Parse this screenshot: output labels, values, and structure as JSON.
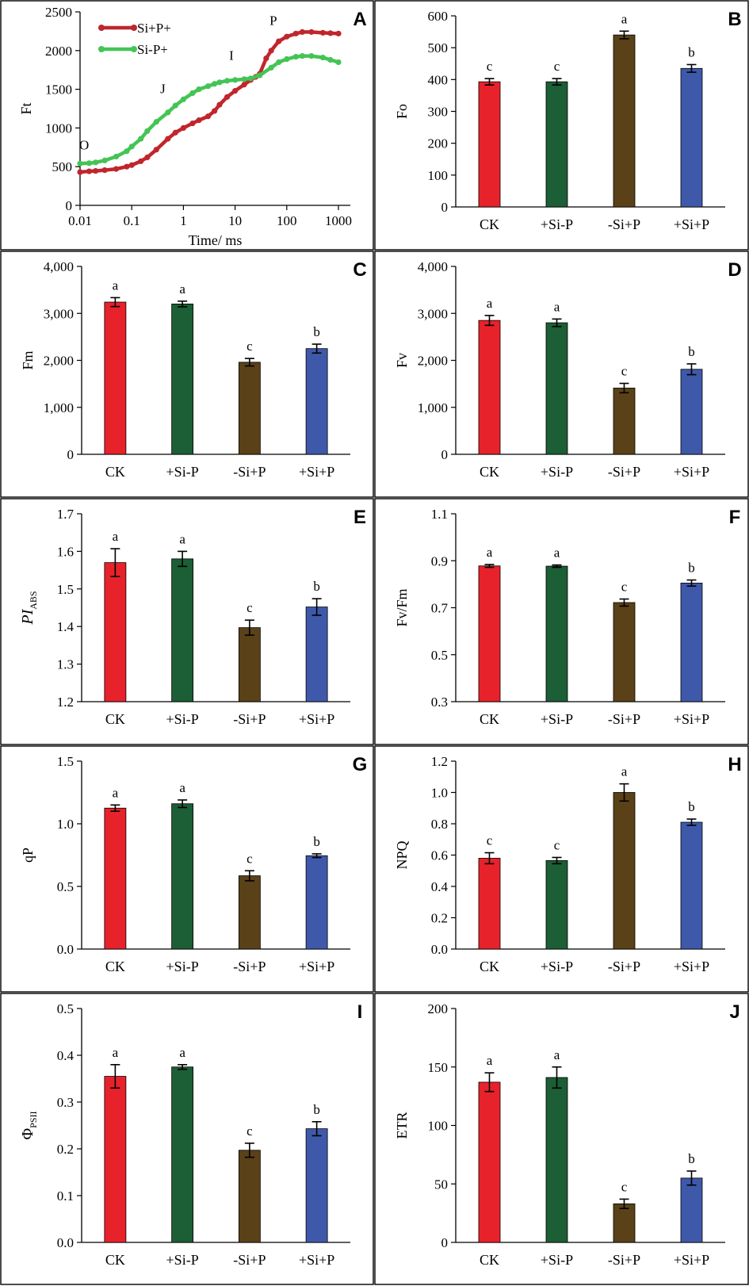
{
  "colors": {
    "red": "#E8222B",
    "green": "#1C5E35",
    "brown": "#5A4118",
    "blue": "#3F59AA",
    "curve_red": "#C0262C",
    "curve_green": "#44C455",
    "border": "#000000"
  },
  "chart_data": [
    {
      "id": "A",
      "letter": "A",
      "type": "line",
      "xscale": "log",
      "xlabel": "Time/ ms",
      "ylabel": "Ft",
      "xlim": [
        0.01,
        1000
      ],
      "ylim": [
        0,
        2500
      ],
      "xticks": [
        0.01,
        0.1,
        1,
        10,
        100,
        1000
      ],
      "xtick_labels": [
        "0.01",
        "0.1",
        "1",
        "10",
        "100",
        "1000"
      ],
      "yticks": [
        0,
        500,
        1000,
        1500,
        2000,
        2500
      ],
      "ytick_labels": [
        "0",
        "500",
        "1000",
        "1500",
        "2000",
        "2500"
      ],
      "legend": [
        "Si+P+",
        "Si-P+"
      ],
      "annotations": [
        {
          "text": "O",
          "x": 0.012,
          "y": 720
        },
        {
          "text": "J",
          "x": 0.4,
          "y": 1450
        },
        {
          "text": "I",
          "x": 8.5,
          "y": 1880
        },
        {
          "text": "P",
          "x": 55,
          "y": 2330
        }
      ],
      "series": [
        {
          "name": "Si+P+",
          "color_key": "curve_red",
          "x": [
            0.01,
            0.015,
            0.02,
            0.03,
            0.05,
            0.08,
            0.1,
            0.15,
            0.2,
            0.3,
            0.5,
            0.7,
            1,
            1.5,
            2,
            3,
            4,
            5,
            7,
            10,
            15,
            20,
            25,
            30,
            40,
            50,
            70,
            100,
            150,
            200,
            300,
            500,
            700,
            1000
          ],
          "y": [
            430,
            440,
            445,
            455,
            470,
            500,
            520,
            570,
            620,
            720,
            860,
            940,
            1000,
            1060,
            1100,
            1150,
            1220,
            1300,
            1400,
            1480,
            1560,
            1620,
            1660,
            1700,
            1900,
            2000,
            2120,
            2180,
            2220,
            2240,
            2240,
            2230,
            2225,
            2220
          ]
        },
        {
          "name": "Si-P+",
          "color_key": "curve_green",
          "x": [
            0.01,
            0.015,
            0.02,
            0.03,
            0.05,
            0.08,
            0.1,
            0.15,
            0.2,
            0.3,
            0.5,
            0.7,
            1,
            1.5,
            2,
            3,
            4,
            5,
            7,
            10,
            15,
            20,
            30,
            50,
            70,
            100,
            150,
            200,
            300,
            500,
            700,
            1000
          ],
          "y": [
            540,
            545,
            555,
            580,
            630,
            700,
            760,
            860,
            960,
            1080,
            1200,
            1290,
            1370,
            1450,
            1500,
            1540,
            1570,
            1590,
            1610,
            1620,
            1630,
            1640,
            1680,
            1780,
            1850,
            1890,
            1920,
            1930,
            1930,
            1910,
            1880,
            1850
          ]
        }
      ]
    },
    {
      "id": "B",
      "letter": "B",
      "type": "bar",
      "ylabel": "Fo",
      "categories": [
        "CK",
        "+Si-P",
        "-Si+P",
        "+Si+P"
      ],
      "values": [
        393,
        393,
        540,
        435
      ],
      "errors": [
        10,
        10,
        12,
        12
      ],
      "letters": [
        "c",
        "c",
        "a",
        "b"
      ],
      "ylim": [
        0,
        600
      ],
      "yticks": [
        0,
        100,
        200,
        300,
        400,
        500,
        600
      ],
      "ytick_labels": [
        "0",
        "100",
        "200",
        "300",
        "400",
        "500",
        "600"
      ]
    },
    {
      "id": "C",
      "letter": "C",
      "type": "bar",
      "ylabel": "Fm",
      "categories": [
        "CK",
        "+Si-P",
        "-Si+P",
        "+Si+P"
      ],
      "values": [
        3240,
        3200,
        1960,
        2250
      ],
      "errors": [
        95,
        60,
        80,
        95
      ],
      "letters": [
        "a",
        "a",
        "c",
        "b"
      ],
      "ylim": [
        0,
        4000
      ],
      "yticks": [
        0,
        1000,
        2000,
        3000,
        4000
      ],
      "ytick_labels": [
        "0",
        "1,000",
        "2,000",
        "3,000",
        "4,000"
      ]
    },
    {
      "id": "D",
      "letter": "D",
      "type": "bar",
      "ylabel": "Fv",
      "categories": [
        "CK",
        "+Si-P",
        "-Si+P",
        "+Si+P"
      ],
      "values": [
        2850,
        2800,
        1410,
        1810
      ],
      "errors": [
        105,
        80,
        100,
        115
      ],
      "letters": [
        "a",
        "a",
        "c",
        "b"
      ],
      "ylim": [
        0,
        4000
      ],
      "yticks": [
        0,
        1000,
        2000,
        3000,
        4000
      ],
      "ytick_labels": [
        "0",
        "1,000",
        "2,000",
        "3,000",
        "4,000"
      ]
    },
    {
      "id": "E",
      "letter": "E",
      "type": "bar",
      "ylabel": "PI",
      "ylabel_sub": "ABS",
      "ylabel_italic": true,
      "categories": [
        "CK",
        "+Si-P",
        "-Si+P",
        "+Si+P"
      ],
      "values": [
        1.57,
        1.58,
        1.397,
        1.452
      ],
      "errors": [
        0.037,
        0.02,
        0.02,
        0.022
      ],
      "letters": [
        "a",
        "a",
        "c",
        "b"
      ],
      "ylim": [
        1.2,
        1.7
      ],
      "yticks": [
        1.2,
        1.3,
        1.4,
        1.5,
        1.6,
        1.7
      ],
      "ytick_labels": [
        "1.2",
        "1.3",
        "1.4",
        "1.5",
        "1.6",
        "1.7"
      ]
    },
    {
      "id": "F",
      "letter": "F",
      "type": "bar",
      "ylabel": "Fv/Fm",
      "categories": [
        "CK",
        "+Si-P",
        "-Si+P",
        "+Si+P"
      ],
      "values": [
        0.878,
        0.877,
        0.722,
        0.805
      ],
      "errors": [
        0.006,
        0.005,
        0.015,
        0.013
      ],
      "letters": [
        "a",
        "a",
        "c",
        "b"
      ],
      "ylim": [
        0.3,
        1.1
      ],
      "yticks": [
        0.3,
        0.5,
        0.7,
        0.9,
        1.1
      ],
      "ytick_labels": [
        "0.3",
        "0.5",
        "0.7",
        "0.9",
        "1.1"
      ]
    },
    {
      "id": "G",
      "letter": "G",
      "type": "bar",
      "ylabel": "qP",
      "categories": [
        "CK",
        "+Si-P",
        "-Si+P",
        "+Si+P"
      ],
      "values": [
        1.125,
        1.16,
        0.585,
        0.745
      ],
      "errors": [
        0.025,
        0.03,
        0.04,
        0.015
      ],
      "letters": [
        "a",
        "a",
        "c",
        "b"
      ],
      "ylim": [
        0,
        1.5
      ],
      "yticks": [
        0,
        0.5,
        1.0,
        1.5
      ],
      "ytick_labels": [
        "0.0",
        "0.5",
        "1.0",
        "1.5"
      ]
    },
    {
      "id": "H",
      "letter": "H",
      "type": "bar",
      "ylabel": "NPQ",
      "categories": [
        "CK",
        "+Si-P",
        "-Si+P",
        "+Si+P"
      ],
      "values": [
        0.58,
        0.565,
        1.0,
        0.81
      ],
      "errors": [
        0.035,
        0.02,
        0.055,
        0.02
      ],
      "letters": [
        "c",
        "c",
        "a",
        "b"
      ],
      "ylim": [
        0,
        1.2
      ],
      "yticks": [
        0,
        0.2,
        0.4,
        0.6,
        0.8,
        1.0,
        1.2
      ],
      "ytick_labels": [
        "0.0",
        "0.2",
        "0.4",
        "0.6",
        "0.8",
        "1.0",
        "1.2"
      ]
    },
    {
      "id": "I",
      "letter": "I",
      "type": "bar",
      "ylabel": "Φ",
      "ylabel_sub": "PSII",
      "categories": [
        "CK",
        "+Si-P",
        "-Si+P",
        "+Si+P"
      ],
      "values": [
        0.355,
        0.375,
        0.197,
        0.243
      ],
      "errors": [
        0.025,
        0.005,
        0.015,
        0.015
      ],
      "letters": [
        "a",
        "a",
        "c",
        "b"
      ],
      "ylim": [
        0,
        0.5
      ],
      "yticks": [
        0,
        0.1,
        0.2,
        0.3,
        0.4,
        0.5
      ],
      "ytick_labels": [
        "0.0",
        "0.1",
        "0.2",
        "0.3",
        "0.4",
        "0.5"
      ]
    },
    {
      "id": "J",
      "letter": "J",
      "type": "bar",
      "ylabel": "ETR",
      "categories": [
        "CK",
        "+Si-P",
        "-Si+P",
        "+Si+P"
      ],
      "values": [
        137,
        141,
        33,
        55
      ],
      "errors": [
        8,
        9,
        4,
        6
      ],
      "letters": [
        "a",
        "a",
        "c",
        "b"
      ],
      "ylim": [
        0,
        200
      ],
      "yticks": [
        0,
        50,
        100,
        150,
        200
      ],
      "ytick_labels": [
        "0",
        "50",
        "100",
        "150",
        "200"
      ]
    }
  ]
}
